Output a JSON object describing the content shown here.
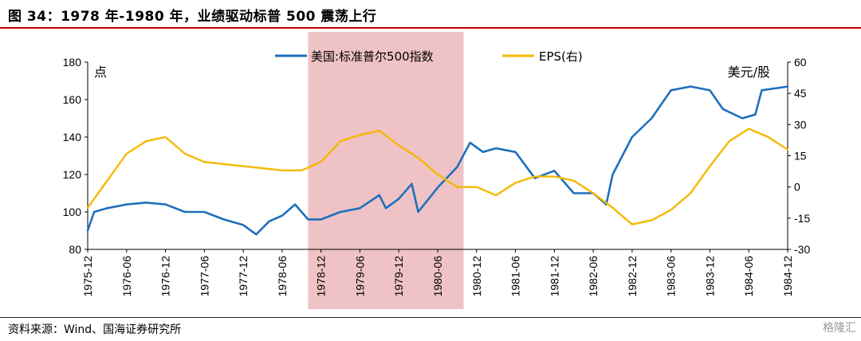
{
  "figure": {
    "title": "图 34：1978 年-1980 年，业绩驱动标普 500 震荡上行",
    "source": "资料来源：Wind、国海证券研究所",
    "watermark": "格隆汇"
  },
  "colors": {
    "index": "#1f6fbd",
    "eps": "#f5b800",
    "shade": "#efc2c5",
    "accent": "#c00000"
  },
  "chart_data": {
    "type": "line",
    "x_ticks": [
      "1975-12",
      "1976-06",
      "1976-12",
      "1977-06",
      "1977-12",
      "1978-06",
      "1978-12",
      "1979-06",
      "1979-12",
      "1980-06",
      "1980-12",
      "1981-06",
      "1981-12",
      "1982-06",
      "1982-12",
      "1983-06",
      "1983-12",
      "1984-06",
      "1984-12"
    ],
    "left_axis": {
      "unit": "点",
      "min": 80,
      "max": 180,
      "ticks": [
        80,
        100,
        120,
        140,
        160,
        180
      ]
    },
    "right_axis": {
      "unit": "美元/股",
      "min": -30,
      "max": 60,
      "ticks": [
        -30,
        -15,
        0,
        15,
        30,
        45,
        60
      ]
    },
    "shaded_period": {
      "from": "1978-10",
      "to": "1980-10"
    },
    "legend": [
      "美国:标准普尔500指数",
      "EPS(右)"
    ],
    "series": [
      {
        "name": "美国:标准普尔500指数",
        "axis": "left",
        "points": [
          [
            "1975-12",
            90
          ],
          [
            "1976-01",
            100
          ],
          [
            "1976-03",
            102
          ],
          [
            "1976-06",
            104
          ],
          [
            "1976-09",
            105
          ],
          [
            "1976-12",
            104
          ],
          [
            "1977-03",
            100
          ],
          [
            "1977-06",
            100
          ],
          [
            "1977-09",
            96
          ],
          [
            "1977-12",
            93
          ],
          [
            "1978-02",
            88
          ],
          [
            "1978-04",
            95
          ],
          [
            "1978-06",
            98
          ],
          [
            "1978-08",
            104
          ],
          [
            "1978-10",
            96
          ],
          [
            "1978-12",
            96
          ],
          [
            "1979-03",
            100
          ],
          [
            "1979-06",
            102
          ],
          [
            "1979-09",
            109
          ],
          [
            "1979-10",
            102
          ],
          [
            "1979-12",
            107
          ],
          [
            "1980-02",
            115
          ],
          [
            "1980-03",
            100
          ],
          [
            "1980-06",
            113
          ],
          [
            "1980-09",
            124
          ],
          [
            "1980-11",
            137
          ],
          [
            "1981-01",
            132
          ],
          [
            "1981-03",
            134
          ],
          [
            "1981-06",
            132
          ],
          [
            "1981-09",
            118
          ],
          [
            "1981-12",
            122
          ],
          [
            "1982-03",
            110
          ],
          [
            "1982-06",
            110
          ],
          [
            "1982-08",
            104
          ],
          [
            "1982-09",
            120
          ],
          [
            "1982-12",
            140
          ],
          [
            "1983-03",
            150
          ],
          [
            "1983-06",
            165
          ],
          [
            "1983-09",
            167
          ],
          [
            "1983-12",
            165
          ],
          [
            "1984-02",
            155
          ],
          [
            "1984-05",
            150
          ],
          [
            "1984-07",
            152
          ],
          [
            "1984-08",
            165
          ],
          [
            "1984-12",
            167
          ]
        ]
      },
      {
        "name": "EPS(右)",
        "axis": "right",
        "points": [
          [
            "1975-12",
            -10
          ],
          [
            "1976-06",
            16
          ],
          [
            "1976-09",
            22
          ],
          [
            "1976-12",
            24
          ],
          [
            "1977-03",
            16
          ],
          [
            "1977-06",
            12
          ],
          [
            "1977-12",
            10
          ],
          [
            "1978-06",
            8
          ],
          [
            "1978-09",
            8
          ],
          [
            "1978-12",
            12
          ],
          [
            "1979-03",
            22
          ],
          [
            "1979-06",
            25
          ],
          [
            "1979-09",
            27
          ],
          [
            "1979-12",
            20
          ],
          [
            "1980-03",
            14
          ],
          [
            "1980-06",
            6
          ],
          [
            "1980-09",
            0
          ],
          [
            "1980-12",
            0
          ],
          [
            "1981-03",
            -4
          ],
          [
            "1981-06",
            2
          ],
          [
            "1981-09",
            5
          ],
          [
            "1981-12",
            5
          ],
          [
            "1982-03",
            3
          ],
          [
            "1982-06",
            -3
          ],
          [
            "1982-09",
            -10
          ],
          [
            "1982-12",
            -18
          ],
          [
            "1983-03",
            -16
          ],
          [
            "1983-06",
            -11
          ],
          [
            "1983-09",
            -3
          ],
          [
            "1983-12",
            10
          ],
          [
            "1984-03",
            22
          ],
          [
            "1984-06",
            28
          ],
          [
            "1984-09",
            24
          ],
          [
            "1984-12",
            18
          ]
        ]
      }
    ]
  }
}
